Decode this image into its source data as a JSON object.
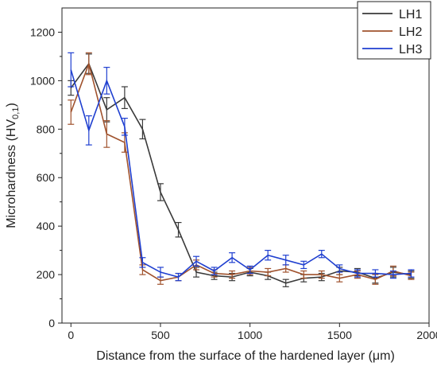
{
  "chart_data": {
    "type": "line",
    "xlabel": "Distance from the surface of the hardened layer (μm)",
    "ylabel_prefix": "Microhardness (HV",
    "ylabel_sub": "0,1",
    "ylabel_suffix": ")",
    "xlim": [
      -50,
      2000
    ],
    "ylim": [
      0,
      1300
    ],
    "x_ticks": [
      0,
      500,
      1000,
      1500,
      2000
    ],
    "y_ticks": [
      0,
      200,
      400,
      600,
      800,
      1000,
      1200
    ],
    "legend_position": "top-right",
    "error_bars": true,
    "x": [
      0,
      100,
      200,
      300,
      400,
      500,
      600,
      700,
      800,
      900,
      1000,
      1100,
      1200,
      1300,
      1400,
      1500,
      1600,
      1700,
      1800,
      1900
    ],
    "series": [
      {
        "name": "LH1",
        "color": "#3a3a3a",
        "values": [
          970,
          1070,
          880,
          930,
          800,
          540,
          385,
          210,
          195,
          190,
          210,
          195,
          165,
          185,
          190,
          215,
          210,
          185,
          210,
          200
        ],
        "errors": [
          30,
          40,
          50,
          45,
          40,
          35,
          30,
          20,
          15,
          15,
          15,
          15,
          15,
          15,
          15,
          15,
          15,
          20,
          20,
          15
        ]
      },
      {
        "name": "LH2",
        "color": "#a0522d",
        "values": [
          870,
          1070,
          780,
          745,
          220,
          175,
          190,
          240,
          205,
          200,
          215,
          210,
          225,
          200,
          200,
          185,
          200,
          180,
          215,
          195
        ],
        "errors": [
          50,
          45,
          55,
          40,
          20,
          15,
          15,
          20,
          15,
          15,
          15,
          15,
          15,
          15,
          15,
          15,
          15,
          20,
          20,
          15
        ]
      },
      {
        "name": "LH3",
        "color": "#1f3fd0",
        "values": [
          1045,
          795,
          1000,
          810,
          250,
          210,
          190,
          255,
          215,
          270,
          220,
          280,
          260,
          240,
          285,
          225,
          205,
          205,
          200,
          205
        ],
        "errors": [
          70,
          60,
          55,
          35,
          20,
          20,
          15,
          20,
          15,
          20,
          15,
          20,
          20,
          15,
          15,
          15,
          15,
          15,
          15,
          15
        ]
      }
    ]
  }
}
